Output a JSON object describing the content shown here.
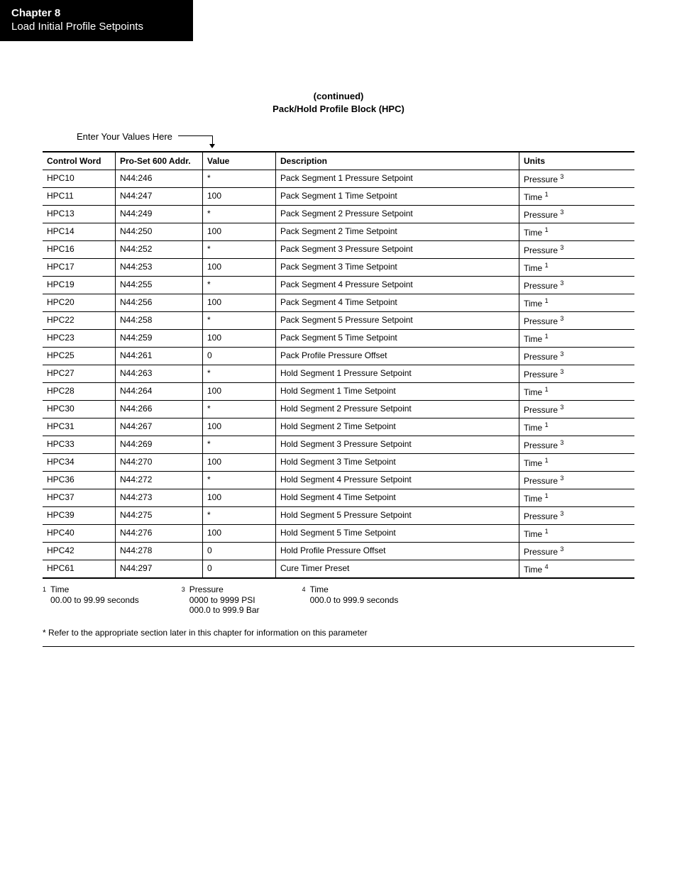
{
  "header": {
    "chapter_label": "Chapter",
    "chapter_number": "8",
    "subtitle": "Load Initial Profile Setpoints"
  },
  "title": {
    "continued": "(continued)",
    "block_name": "Pack/Hold Profile Block (HPC)"
  },
  "callout_label": "Enter Your Values Here",
  "columns": {
    "control_word": "Control Word",
    "addr": "Pro-Set 600 Addr.",
    "value": "Value",
    "description": "Description",
    "units": "Units"
  },
  "rows": [
    {
      "cw": "HPC10",
      "addr": "N44:246",
      "val": "*",
      "desc": "Pack Segment 1 Pressure Setpoint",
      "unit": "Pressure",
      "ref": "3"
    },
    {
      "cw": "HPC11",
      "addr": "N44:247",
      "val": "100",
      "desc": "Pack Segment 1 Time Setpoint",
      "unit": "Time",
      "ref": "1"
    },
    {
      "cw": "HPC13",
      "addr": "N44:249",
      "val": "*",
      "desc": "Pack Segment 2 Pressure Setpoint",
      "unit": "Pressure",
      "ref": "3"
    },
    {
      "cw": "HPC14",
      "addr": "N44:250",
      "val": "100",
      "desc": "Pack Segment 2 Time Setpoint",
      "unit": "Time",
      "ref": "1"
    },
    {
      "cw": "HPC16",
      "addr": "N44:252",
      "val": "*",
      "desc": "Pack Segment 3 Pressure Setpoint",
      "unit": "Pressure",
      "ref": "3"
    },
    {
      "cw": "HPC17",
      "addr": "N44:253",
      "val": "100",
      "desc": "Pack Segment 3 Time Setpoint",
      "unit": "Time",
      "ref": "1"
    },
    {
      "cw": "HPC19",
      "addr": "N44:255",
      "val": "*",
      "desc": "Pack Segment 4 Pressure Setpoint",
      "unit": "Pressure",
      "ref": "3"
    },
    {
      "cw": "HPC20",
      "addr": "N44:256",
      "val": "100",
      "desc": "Pack Segment 4 Time Setpoint",
      "unit": "Time",
      "ref": "1"
    },
    {
      "cw": "HPC22",
      "addr": "N44:258",
      "val": "*",
      "desc": "Pack Segment 5 Pressure Setpoint",
      "unit": "Pressure",
      "ref": "3"
    },
    {
      "cw": "HPC23",
      "addr": "N44:259",
      "val": "100",
      "desc": "Pack Segment 5 Time Setpoint",
      "unit": "Time",
      "ref": "1"
    },
    {
      "cw": "HPC25",
      "addr": "N44:261",
      "val": "0",
      "desc": "Pack Profile Pressure Offset",
      "unit": "Pressure",
      "ref": "3"
    },
    {
      "cw": "HPC27",
      "addr": "N44:263",
      "val": "*",
      "desc": "Hold Segment 1 Pressure Setpoint",
      "unit": "Pressure",
      "ref": "3"
    },
    {
      "cw": "HPC28",
      "addr": "N44:264",
      "val": "100",
      "desc": "Hold Segment 1 Time Setpoint",
      "unit": "Time",
      "ref": "1"
    },
    {
      "cw": "HPC30",
      "addr": "N44:266",
      "val": "*",
      "desc": "Hold Segment 2 Pressure Setpoint",
      "unit": "Pressure",
      "ref": "3"
    },
    {
      "cw": "HPC31",
      "addr": "N44:267",
      "val": "100",
      "desc": "Hold Segment 2 Time Setpoint",
      "unit": "Time",
      "ref": "1"
    },
    {
      "cw": "HPC33",
      "addr": "N44:269",
      "val": "*",
      "desc": "Hold Segment 3 Pressure Setpoint",
      "unit": "Pressure",
      "ref": "3"
    },
    {
      "cw": "HPC34",
      "addr": "N44:270",
      "val": "100",
      "desc": "Hold Segment 3 Time Setpoint",
      "unit": "Time",
      "ref": "1"
    },
    {
      "cw": "HPC36",
      "addr": "N44:272",
      "val": "*",
      "desc": "Hold Segment 4 Pressure Setpoint",
      "unit": "Pressure",
      "ref": "3"
    },
    {
      "cw": "HPC37",
      "addr": "N44:273",
      "val": "100",
      "desc": "Hold Segment 4 Time Setpoint",
      "unit": "Time",
      "ref": "1"
    },
    {
      "cw": "HPC39",
      "addr": "N44:275",
      "val": "*",
      "desc": "Hold Segment 5 Pressure Setpoint",
      "unit": "Pressure",
      "ref": "3"
    },
    {
      "cw": "HPC40",
      "addr": "N44:276",
      "val": "100",
      "desc": "Hold Segment 5 Time Setpoint",
      "unit": "Time",
      "ref": "1"
    },
    {
      "cw": "HPC42",
      "addr": "N44:278",
      "val": "0",
      "desc": "Hold Profile Pressure Offset",
      "unit": "Pressure",
      "ref": "3"
    },
    {
      "cw": "HPC61",
      "addr": "N44:297",
      "val": "0",
      "desc": "Cure Timer Preset",
      "unit": "Time",
      "ref": "4"
    }
  ],
  "footnotes": {
    "fn1": {
      "num": "1",
      "label": "Time",
      "range": "00.00 to 99.99 seconds"
    },
    "fn3": {
      "num": "3",
      "label": "Pressure",
      "range1": "0000 to 9999 PSI",
      "range2": "000.0 to 999.9 Bar"
    },
    "fn4": {
      "num": "4",
      "label": "Time",
      "range": "000.0 to 999.9 seconds"
    }
  },
  "asterisk_note": "*   Refer to the appropriate section later in this chapter for information on this parameter"
}
